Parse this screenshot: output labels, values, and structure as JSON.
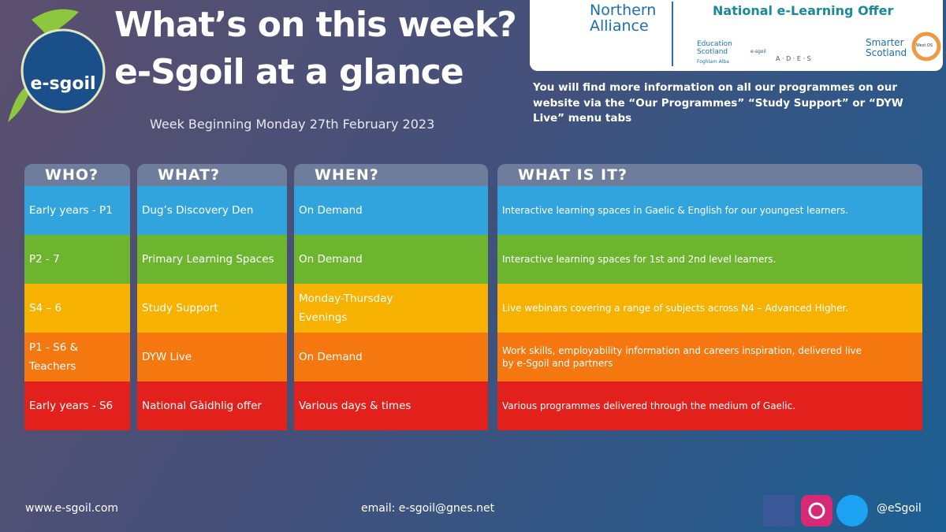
{
  "header": {
    "title_line1": "What’s on this week?",
    "title_line2": "e-Sgoil at a glance",
    "week": "Week Beginning Monday 27th February 2023",
    "logo_text": "e-sgoil"
  },
  "partners": {
    "northern": "Northern",
    "alliance": "Alliance",
    "offer": "National e-Learning Offer",
    "education_scotland": "Education Scotland",
    "foghlam": "Foghlam Alba",
    "esgoil": "e-sgoil",
    "ades": "A · D · E · S",
    "smarter": "Smarter Scotland",
    "westos": "West OS"
  },
  "info": "You will find more information on all our programmes on our website via the “Our Programmes” “Study Support” or “DYW Live” menu tabs",
  "table": {
    "headers": [
      "WHO?",
      "WHAT?",
      "WHEN?",
      "WHAT IS IT?"
    ],
    "rows": [
      {
        "who": "Early years - P1",
        "what": "Dug’s Discovery Den",
        "when": "On Demand",
        "description": "Interactive learning spaces in Gaelic & English for our youngest learners.",
        "color": "#31a4de"
      },
      {
        "who": "P2 - 7",
        "what": "Primary Learning Spaces",
        "when": "On Demand",
        "description": "Interactive learning spaces for 1st and 2nd level learners.",
        "color": "#6db52e"
      },
      {
        "who": "S4 – 6",
        "what": "Study Support",
        "when": "Monday-Thursday\nEvenings",
        "description": "Live webinars covering a range of subjects across N4 – Advanced Higher.",
        "color": "#f7b100"
      },
      {
        "who": "P1 - S6 &\nTeachers",
        "what": "DYW Live",
        "when": "On Demand",
        "description": "Work skills, employability information and careers inspiration, delivered live\nby e-Sgoil and partners",
        "color": "#f4780f"
      },
      {
        "who": "Early years - S6",
        "what": "National Gàidhlig offer",
        "when": "Various days & times",
        "description": "Various programmes delivered through the medium of Gaelic.",
        "color": "#e2211c"
      }
    ]
  },
  "footer": {
    "website": "www.e-sgoil.com",
    "email": "email: e-sgoil@gnes.net",
    "handle": "@eSgoil"
  }
}
